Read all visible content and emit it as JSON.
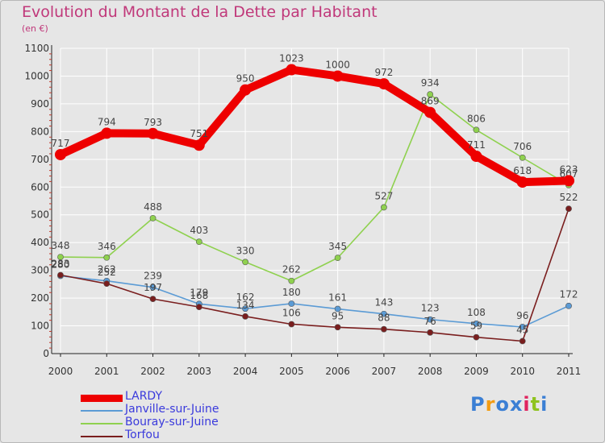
{
  "chart_data": {
    "type": "line",
    "title": "Evolution du Montant de la Dette par Habitant",
    "unit_label": "(en €)",
    "xlabel": "",
    "ylabel": "",
    "categories": [
      "2000",
      "2001",
      "2002",
      "2003",
      "2004",
      "2005",
      "2006",
      "2007",
      "2008",
      "2009",
      "2010",
      "2011"
    ],
    "y_ticks": [
      0,
      100,
      200,
      300,
      400,
      500,
      600,
      700,
      800,
      900,
      1000,
      1100
    ],
    "ylim": [
      0,
      1100
    ],
    "grid": true,
    "legend_position": "bottom-left",
    "series": [
      {
        "name": "LARDY",
        "color": "#ee0000",
        "values": [
          717,
          794,
          793,
          751,
          950,
          1023,
          1000,
          972,
          869,
          711,
          618,
          623
        ]
      },
      {
        "name": "Janville-sur-Juine",
        "color": "#5b9bd5",
        "values": [
          280,
          262,
          239,
          179,
          162,
          180,
          161,
          143,
          123,
          108,
          96,
          172
        ]
      },
      {
        "name": "Bouray-sur-Juine",
        "color": "#8fd14f",
        "values": [
          348,
          346,
          488,
          403,
          330,
          262,
          345,
          527,
          934,
          806,
          706,
          607
        ]
      },
      {
        "name": "Torfou",
        "color": "#7a1e1e",
        "values": [
          283,
          252,
          197,
          168,
          134,
          106,
          95,
          88,
          76,
          59,
          45,
          522
        ]
      }
    ]
  },
  "brand": {
    "text": "Proxiti",
    "colors": [
      "#3b7fd4",
      "#f39c12",
      "#3b7fd4",
      "#3b7fd4",
      "#e0245e",
      "#8fc31f",
      "#3b7fd4"
    ]
  }
}
